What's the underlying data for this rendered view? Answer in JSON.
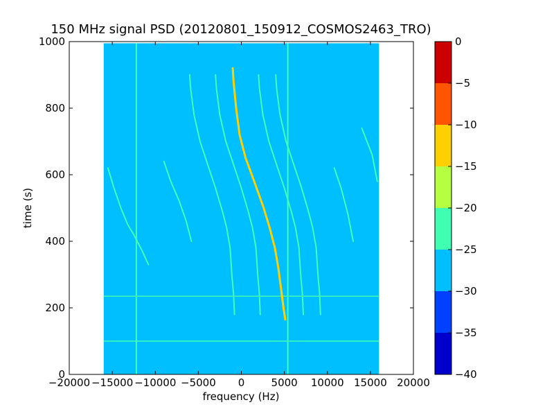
{
  "chart_data": {
    "type": "heatmap",
    "title": "150 MHz signal PSD (20120801_150912_COSMOS2463_TRO)",
    "xlabel": "frequency (Hz)",
    "ylabel": "time (s)",
    "xlim": [
      -20000,
      20000
    ],
    "ylim": [
      0,
      1000
    ],
    "xticks": [
      -20000,
      -15000,
      -10000,
      -5000,
      0,
      5000,
      10000,
      15000,
      20000
    ],
    "xtick_labels": [
      "−20000",
      "−15000",
      "−10000",
      "−5000",
      "0",
      "5000",
      "10000",
      "15000",
      "20000"
    ],
    "yticks": [
      0,
      200,
      400,
      600,
      800,
      1000
    ],
    "ytick_labels": [
      "0",
      "200",
      "400",
      "600",
      "800",
      "1000"
    ],
    "data_extent": {
      "freq_min": -16000,
      "freq_max": 16000,
      "time_min": 0,
      "time_max": 995
    },
    "background_level": -27.5,
    "colorbar": {
      "min": -40,
      "max": 0,
      "ticks": [
        0,
        -5,
        -10,
        -15,
        -20,
        -25,
        -30,
        -35,
        -40
      ],
      "tick_labels": [
        "0",
        "−5",
        "−10",
        "−15",
        "−20",
        "−25",
        "−30",
        "−35",
        "−40"
      ],
      "levels": [
        {
          "from": -40,
          "to": -35,
          "color": "#0000cc"
        },
        {
          "from": -35,
          "to": -30,
          "color": "#0040ff"
        },
        {
          "from": -30,
          "to": -25,
          "color": "#00bfff"
        },
        {
          "from": -25,
          "to": -20,
          "color": "#40ffb3"
        },
        {
          "from": -20,
          "to": -15,
          "color": "#b3ff40"
        },
        {
          "from": -15,
          "to": -10,
          "color": "#ffd000"
        },
        {
          "from": -10,
          "to": -5,
          "color": "#ff5500"
        },
        {
          "from": -5,
          "to": 0,
          "color": "#cc0000"
        }
      ]
    },
    "vertical_lines": [
      {
        "freq": -12200,
        "t0": 0,
        "t1": 995,
        "level": -22
      },
      {
        "freq": 5400,
        "t0": 0,
        "t1": 995,
        "level": -22
      }
    ],
    "horizontal_lines": [
      {
        "time": 100,
        "level": -23
      },
      {
        "time": 235,
        "level": -23
      }
    ],
    "traces": [
      {
        "name": "",
        "level": -12,
        "points": [
          [
            -1000,
            920
          ],
          [
            -900,
            880
          ],
          [
            -600,
            800
          ],
          [
            -200,
            720
          ],
          [
            500,
            650
          ],
          [
            1500,
            580
          ],
          [
            2600,
            500
          ],
          [
            3300,
            440
          ],
          [
            3900,
            380
          ],
          [
            4300,
            320
          ],
          [
            4600,
            260
          ],
          [
            4900,
            200
          ],
          [
            5100,
            165
          ]
        ]
      },
      {
        "name": "",
        "level": -22,
        "points": [
          [
            -3000,
            900
          ],
          [
            -2900,
            860
          ],
          [
            -2500,
            780
          ],
          [
            -1800,
            700
          ],
          [
            -900,
            630
          ],
          [
            0,
            560
          ],
          [
            800,
            490
          ],
          [
            1300,
            440
          ],
          [
            1700,
            380
          ],
          [
            1900,
            300
          ],
          [
            2100,
            240
          ],
          [
            2200,
            180
          ]
        ]
      },
      {
        "name": "",
        "level": -22,
        "points": [
          [
            -6000,
            900
          ],
          [
            -5900,
            860
          ],
          [
            -5500,
            780
          ],
          [
            -4800,
            700
          ],
          [
            -3900,
            630
          ],
          [
            -3000,
            560
          ],
          [
            -2200,
            490
          ],
          [
            -1700,
            440
          ],
          [
            -1300,
            380
          ],
          [
            -1100,
            300
          ],
          [
            -900,
            240
          ],
          [
            -800,
            180
          ]
        ]
      },
      {
        "name": "",
        "level": -22,
        "points": [
          [
            2000,
            900
          ],
          [
            2100,
            860
          ],
          [
            2500,
            780
          ],
          [
            3200,
            700
          ],
          [
            4100,
            630
          ],
          [
            5000,
            560
          ],
          [
            5800,
            490
          ],
          [
            6300,
            440
          ],
          [
            6700,
            380
          ],
          [
            6900,
            300
          ],
          [
            7100,
            240
          ],
          [
            7200,
            180
          ]
        ]
      },
      {
        "name": "",
        "level": -22,
        "points": [
          [
            4000,
            900
          ],
          [
            4100,
            860
          ],
          [
            4500,
            780
          ],
          [
            5200,
            700
          ],
          [
            6100,
            630
          ],
          [
            7000,
            560
          ],
          [
            7800,
            490
          ],
          [
            8300,
            440
          ],
          [
            8700,
            380
          ],
          [
            8900,
            300
          ],
          [
            9100,
            240
          ],
          [
            9200,
            180
          ]
        ]
      },
      {
        "name": "",
        "level": -25,
        "points": [
          [
            -15500,
            620
          ],
          [
            -14800,
            560
          ],
          [
            -14000,
            500
          ],
          [
            -13200,
            450
          ],
          [
            -12500,
            420
          ],
          [
            -11500,
            370
          ],
          [
            -10800,
            330
          ]
        ]
      },
      {
        "name": "",
        "level": -25,
        "points": [
          [
            -9000,
            640
          ],
          [
            -8200,
            580
          ],
          [
            -7200,
            520
          ],
          [
            -6400,
            460
          ],
          [
            -5800,
            400
          ]
        ]
      },
      {
        "name": "",
        "level": -25,
        "points": [
          [
            10800,
            620
          ],
          [
            11600,
            560
          ],
          [
            12400,
            480
          ],
          [
            13000,
            400
          ]
        ]
      },
      {
        "name": "",
        "level": -25,
        "points": [
          [
            14000,
            740
          ],
          [
            14600,
            700
          ],
          [
            15200,
            660
          ],
          [
            15800,
            580
          ]
        ]
      }
    ]
  }
}
